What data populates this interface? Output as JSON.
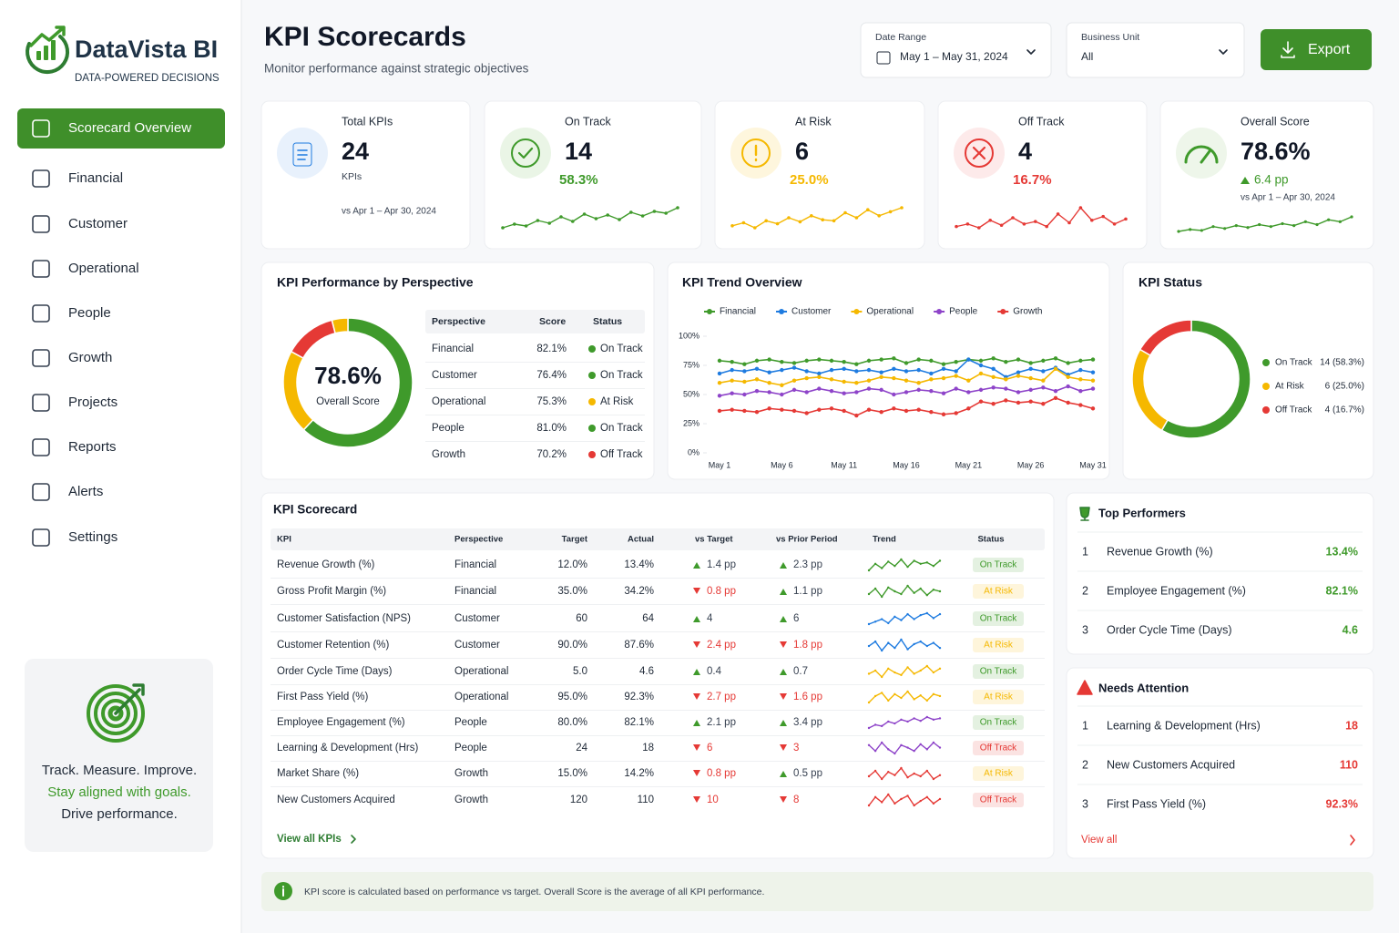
{
  "brand": {
    "name": "DataVista BI",
    "tagline": "DATA-POWERED DECISIONS"
  },
  "nav": [
    "Scorecard Overview",
    "Financial",
    "Customer",
    "Operational",
    "People",
    "Growth",
    "Projects",
    "Reports",
    "Alerts",
    "Settings"
  ],
  "promo": [
    "Track. Measure. Improve.",
    "Stay aligned with goals.",
    "Drive performance."
  ],
  "header": {
    "title": "KPI Scorecards",
    "subtitle": "Monitor performance against strategic objectives",
    "filters": [
      {
        "label": "Date Range",
        "value": "May 1 – May 31, 2024"
      },
      {
        "label": "Business Unit",
        "value": "All"
      }
    ],
    "export": "Export"
  },
  "cards": [
    {
      "title": "Total KPIs",
      "value": "24",
      "unit": "KPIs",
      "note": "vs Apr 1 – Apr 30, 2024"
    },
    {
      "title": "On Track",
      "value": "14",
      "pct": "58.3%"
    },
    {
      "title": "At Risk",
      "value": "6",
      "pct": "25.0%"
    },
    {
      "title": "Off Track",
      "value": "4",
      "pct": "16.7%"
    },
    {
      "title": "Overall Score",
      "value": "78.6%",
      "change": "6.4 pp",
      "note": "vs Apr 1 – Apr 30, 2024"
    }
  ],
  "perspective": {
    "title": "KPI Performance by Perspective",
    "center_value": "78.6%",
    "center_label": "Overall Score",
    "columns": [
      "Perspective",
      "Score",
      "Status"
    ],
    "rows": [
      [
        "Financial",
        "82.1%",
        "On Track"
      ],
      [
        "Customer",
        "76.4%",
        "On Track"
      ],
      [
        "Operational",
        "75.3%",
        "At Risk"
      ],
      [
        "People",
        "81.0%",
        "On Track"
      ],
      [
        "Growth",
        "70.2%",
        "Off Track"
      ]
    ]
  },
  "scorecard": {
    "title": "KPI Scorecard",
    "columns": [
      "KPI",
      "Perspective",
      "Target",
      "Actual",
      "vs Target",
      "vs Prior Period",
      "Trend",
      "Status"
    ],
    "rows": [
      {
        "kpi": "Revenue Growth (%)",
        "perspective": "Financial",
        "target": "12.0%",
        "actual": "13.4%",
        "vs_target": "1.4 pp",
        "vs_target_dir": "up",
        "vs_prior": "2.3 pp",
        "vs_prior_dir": "up",
        "status": "On Track"
      },
      {
        "kpi": "Gross Profit Margin (%)",
        "perspective": "Financial",
        "target": "35.0%",
        "actual": "34.2%",
        "vs_target": "0.8 pp",
        "vs_target_dir": "down",
        "vs_prior": "1.1 pp",
        "vs_prior_dir": "up",
        "status": "At Risk"
      },
      {
        "kpi": "Customer Satisfaction (NPS)",
        "perspective": "Customer",
        "target": "60",
        "actual": "64",
        "vs_target": "4",
        "vs_target_dir": "up",
        "vs_prior": "6",
        "vs_prior_dir": "up",
        "status": "On Track"
      },
      {
        "kpi": "Customer Retention (%)",
        "perspective": "Customer",
        "target": "90.0%",
        "actual": "87.6%",
        "vs_target": "2.4 pp",
        "vs_target_dir": "down",
        "vs_prior": "1.8 pp",
        "vs_prior_dir": "down",
        "status": "At Risk"
      },
      {
        "kpi": "Order Cycle Time (Days)",
        "perspective": "Operational",
        "target": "5.0",
        "actual": "4.6",
        "vs_target": "0.4",
        "vs_target_dir": "up",
        "vs_prior": "0.7",
        "vs_prior_dir": "up",
        "status": "On Track"
      },
      {
        "kpi": "First Pass Yield (%)",
        "perspective": "Operational",
        "target": "95.0%",
        "actual": "92.3%",
        "vs_target": "2.7 pp",
        "vs_target_dir": "down",
        "vs_prior": "1.6 pp",
        "vs_prior_dir": "down",
        "status": "At Risk"
      },
      {
        "kpi": "Employee Engagement (%)",
        "perspective": "People",
        "target": "80.0%",
        "actual": "82.1%",
        "vs_target": "2.1 pp",
        "vs_target_dir": "up",
        "vs_prior": "3.4 pp",
        "vs_prior_dir": "up",
        "status": "On Track"
      },
      {
        "kpi": "Learning & Development (Hrs)",
        "perspective": "People",
        "target": "24",
        "actual": "18",
        "vs_target": "6",
        "vs_target_dir": "down",
        "vs_prior": "3",
        "vs_prior_dir": "down",
        "status": "Off Track"
      },
      {
        "kpi": "Market Share (%)",
        "perspective": "Growth",
        "target": "15.0%",
        "actual": "14.2%",
        "vs_target": "0.8 pp",
        "vs_target_dir": "down",
        "vs_prior": "0.5 pp",
        "vs_prior_dir": "up",
        "status": "At Risk"
      },
      {
        "kpi": "New Customers Acquired",
        "perspective": "Growth",
        "target": "120",
        "actual": "110",
        "vs_target": "10",
        "vs_target_dir": "down",
        "vs_prior": "8",
        "vs_prior_dir": "down",
        "status": "Off Track"
      }
    ],
    "link": "View all KPIs"
  },
  "top_performers": {
    "title": "Top Performers",
    "rows": [
      [
        "1",
        "Revenue Growth (%)",
        "13.4%"
      ],
      [
        "2",
        "Employee Engagement (%)",
        "82.1%"
      ],
      [
        "3",
        "Order Cycle Time (Days)",
        "4.6"
      ]
    ]
  },
  "needs_attention": {
    "title": "Needs Attention",
    "rows": [
      [
        "1",
        "Learning & Development (Hrs)",
        "18"
      ],
      [
        "2",
        "New Customers Acquired",
        "110"
      ],
      [
        "3",
        "First Pass Yield (%)",
        "92.3%"
      ]
    ],
    "link": "View all"
  },
  "footer_note": "KPI score is calculated based on performance vs target. Overall Score is the average of all KPI performance.",
  "chart_data": [
    {
      "type": "pie",
      "values": [
        62,
        21,
        13,
        4
      ],
      "colors": [
        "#3f9a2b",
        "#f5b800",
        "#e53935",
        "#f5b800"
      ]
    },
    {
      "type": "line",
      "title": "KPI Trend Overview",
      "categories": [
        "May 1",
        null,
        null,
        null,
        null,
        "May 6",
        null,
        null,
        null,
        null,
        "May 11",
        null,
        null,
        null,
        null,
        "May 16",
        null,
        null,
        null,
        null,
        "May 21",
        null,
        null,
        null,
        null,
        "May 26",
        null,
        null,
        null,
        null,
        "May 31"
      ],
      "series": [
        {
          "name": "Financial",
          "color": "#3f9a2b",
          "values": [
            79,
            78,
            76,
            79,
            80,
            78,
            77,
            79,
            80,
            79,
            78,
            76,
            79,
            80,
            81,
            77,
            80,
            79,
            76,
            78,
            80,
            79,
            81,
            78,
            80,
            77,
            79,
            81,
            77,
            79,
            80
          ]
        },
        {
          "name": "Customer",
          "color": "#1e7be0",
          "values": [
            68,
            71,
            70,
            72,
            69,
            71,
            73,
            70,
            68,
            71,
            72,
            70,
            71,
            69,
            72,
            70,
            71,
            68,
            72,
            70,
            80,
            75,
            72,
            65,
            69,
            72,
            70,
            73,
            67,
            71,
            69
          ]
        },
        {
          "name": "Operational",
          "color": "#f5b800",
          "values": [
            60,
            62,
            61,
            63,
            60,
            58,
            62,
            64,
            65,
            63,
            61,
            60,
            62,
            65,
            64,
            62,
            60,
            63,
            64,
            66,
            62,
            68,
            65,
            63,
            66,
            64,
            62,
            72,
            65,
            63,
            62
          ]
        },
        {
          "name": "People",
          "color": "#8e44c9",
          "values": [
            49,
            51,
            50,
            53,
            52,
            50,
            54,
            52,
            55,
            53,
            51,
            52,
            55,
            54,
            50,
            52,
            54,
            53,
            51,
            55,
            52,
            54,
            56,
            55,
            52,
            54,
            56,
            53,
            57,
            53,
            55
          ]
        },
        {
          "name": "Growth",
          "color": "#e53935",
          "values": [
            36,
            37,
            36,
            35,
            38,
            37,
            36,
            34,
            37,
            38,
            36,
            32,
            37,
            35,
            38,
            36,
            37,
            35,
            33,
            34,
            38,
            44,
            42,
            45,
            43,
            44,
            42,
            47,
            43,
            41,
            38
          ]
        }
      ],
      "ylim": [
        0,
        100
      ],
      "yticks": [
        {
          "value": 0,
          "label": "0%"
        },
        {
          "value": 25,
          "label": "25%"
        },
        {
          "value": 50,
          "label": "50%"
        },
        {
          "value": 75,
          "label": "75%"
        },
        {
          "value": 100,
          "label": "100%"
        }
      ]
    },
    {
      "type": "pie",
      "title": "KPI Status",
      "categories": [
        "On Track",
        "At Risk",
        "Off Track"
      ],
      "values": [
        14,
        6,
        4
      ],
      "value_labels": [
        "14 (58.3%)",
        "6 (25.0%)",
        "4 (16.7%)"
      ],
      "colors": [
        "#3f9a2b",
        "#f5b800",
        "#e53935"
      ]
    },
    {
      "type": "line",
      "color": "#3f9a2b",
      "values": [
        40,
        44,
        42,
        48,
        45,
        52,
        47,
        55,
        50,
        54,
        49,
        57,
        53,
        58,
        56,
        62
      ]
    },
    {
      "type": "line",
      "color": "#f5b800",
      "values": [
        42,
        45,
        40,
        47,
        44,
        50,
        46,
        52,
        48,
        47,
        55,
        50,
        58,
        52,
        56,
        60
      ]
    },
    {
      "type": "line",
      "color": "#e53935",
      "values": [
        50,
        52,
        49,
        55,
        51,
        57,
        52,
        54,
        50,
        60,
        53,
        65,
        55,
        58,
        52,
        56
      ]
    },
    {
      "type": "line",
      "color": "#3f9a2b",
      "values": [
        40,
        42,
        41,
        45,
        43,
        46,
        44,
        47,
        45,
        48,
        46,
        50,
        47,
        52,
        50,
        55
      ]
    },
    {
      "type": "line",
      "color": "#3f9a2b",
      "values": [
        40,
        55,
        45,
        60,
        50,
        65,
        48,
        62,
        55,
        58,
        50,
        62
      ]
    },
    {
      "type": "line",
      "color": "#3f9a2b",
      "values": [
        50,
        60,
        45,
        62,
        55,
        50,
        65,
        52,
        60,
        48,
        58,
        55
      ]
    },
    {
      "type": "line",
      "color": "#1e7be0",
      "values": [
        40,
        45,
        50,
        42,
        55,
        48,
        60,
        50,
        58,
        62,
        52,
        60
      ]
    },
    {
      "type": "line",
      "color": "#1e7be0",
      "values": [
        55,
        62,
        48,
        60,
        52,
        65,
        50,
        58,
        62,
        55,
        60,
        52
      ]
    },
    {
      "type": "line",
      "color": "#f5b800",
      "values": [
        50,
        55,
        45,
        58,
        52,
        48,
        60,
        50,
        55,
        62,
        52,
        58
      ]
    },
    {
      "type": "line",
      "color": "#f5b800",
      "values": [
        45,
        55,
        60,
        48,
        58,
        52,
        62,
        50,
        56,
        48,
        58,
        55
      ]
    },
    {
      "type": "line",
      "color": "#8e44c9",
      "values": [
        45,
        50,
        48,
        55,
        52,
        58,
        55,
        60,
        56,
        62,
        58,
        60
      ]
    },
    {
      "type": "line",
      "color": "#8e44c9",
      "values": [
        55,
        48,
        58,
        50,
        45,
        55,
        52,
        48,
        56,
        50,
        58,
        52
      ]
    },
    {
      "type": "line",
      "color": "#e53935",
      "values": [
        50,
        60,
        45,
        58,
        52,
        65,
        48,
        55,
        50,
        60,
        45,
        52
      ]
    },
    {
      "type": "line",
      "color": "#e53935",
      "values": [
        45,
        58,
        50,
        62,
        48,
        55,
        60,
        45,
        52,
        58,
        48,
        55
      ]
    }
  ]
}
